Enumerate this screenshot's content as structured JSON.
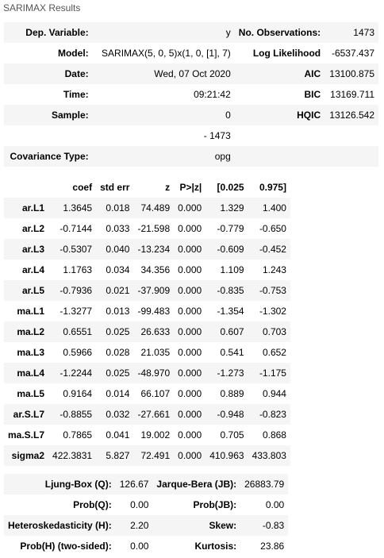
{
  "caption": "SARIMAX Results",
  "summary": [
    {
      "k1": "Dep. Variable:",
      "v1": "y",
      "k2": "No. Observations:",
      "v2": "1473"
    },
    {
      "k1": "Model:",
      "v1": "SARIMAX(5, 0, 5)x(1, 0, [1], 7)",
      "k2": "Log Likelihood",
      "v2": "-6537.437"
    },
    {
      "k1": "Date:",
      "v1": "Wed, 07 Oct 2020",
      "k2": "AIC",
      "v2": "13100.875"
    },
    {
      "k1": "Time:",
      "v1": "09:21:42",
      "k2": "BIC",
      "v2": "13169.711"
    },
    {
      "k1": "Sample:",
      "v1": "0",
      "k2": "HQIC",
      "v2": "13126.542"
    },
    {
      "k1": "",
      "v1": "- 1473",
      "k2": "",
      "v2": ""
    },
    {
      "k1": "Covariance Type:",
      "v1": "opg",
      "k2": "",
      "v2": ""
    }
  ],
  "coef_headers": [
    "",
    "coef",
    "std err",
    "z",
    "P>|z|",
    "[0.025",
    "0.975]"
  ],
  "coef_rows": [
    [
      "ar.L1",
      "1.3645",
      "0.018",
      "74.489",
      "0.000",
      "1.329",
      "1.400"
    ],
    [
      "ar.L2",
      "-0.7144",
      "0.033",
      "-21.598",
      "0.000",
      "-0.779",
      "-0.650"
    ],
    [
      "ar.L3",
      "-0.5307",
      "0.040",
      "-13.234",
      "0.000",
      "-0.609",
      "-0.452"
    ],
    [
      "ar.L4",
      "1.1763",
      "0.034",
      "34.356",
      "0.000",
      "1.109",
      "1.243"
    ],
    [
      "ar.L5",
      "-0.7936",
      "0.021",
      "-37.909",
      "0.000",
      "-0.835",
      "-0.753"
    ],
    [
      "ma.L1",
      "-1.3277",
      "0.013",
      "-99.483",
      "0.000",
      "-1.354",
      "-1.302"
    ],
    [
      "ma.L2",
      "0.6551",
      "0.025",
      "26.633",
      "0.000",
      "0.607",
      "0.703"
    ],
    [
      "ma.L3",
      "0.5966",
      "0.028",
      "21.035",
      "0.000",
      "0.541",
      "0.652"
    ],
    [
      "ma.L4",
      "-1.2244",
      "0.025",
      "-48.970",
      "0.000",
      "-1.273",
      "-1.175"
    ],
    [
      "ma.L5",
      "0.9164",
      "0.014",
      "66.107",
      "0.000",
      "0.889",
      "0.944"
    ],
    [
      "ar.S.L7",
      "-0.8855",
      "0.032",
      "-27.661",
      "0.000",
      "-0.948",
      "-0.823"
    ],
    [
      "ma.S.L7",
      "0.7865",
      "0.041",
      "19.002",
      "0.000",
      "0.705",
      "0.868"
    ],
    [
      "sigma2",
      "422.3831",
      "5.827",
      "72.491",
      "0.000",
      "410.963",
      "433.803"
    ]
  ],
  "diag": [
    {
      "k1": "Ljung-Box (Q):",
      "v1": "126.67",
      "k2": "Jarque-Bera (JB):",
      "v2": "26883.79"
    },
    {
      "k1": "Prob(Q):",
      "v1": "0.00",
      "k2": "Prob(JB):",
      "v2": "0.00"
    },
    {
      "k1": "Heteroskedasticity (H):",
      "v1": "2.20",
      "k2": "Skew:",
      "v2": "-0.83"
    },
    {
      "k1": "Prob(H) (two-sided):",
      "v1": "0.00",
      "k2": "Kurtosis:",
      "v2": "23.86"
    }
  ]
}
